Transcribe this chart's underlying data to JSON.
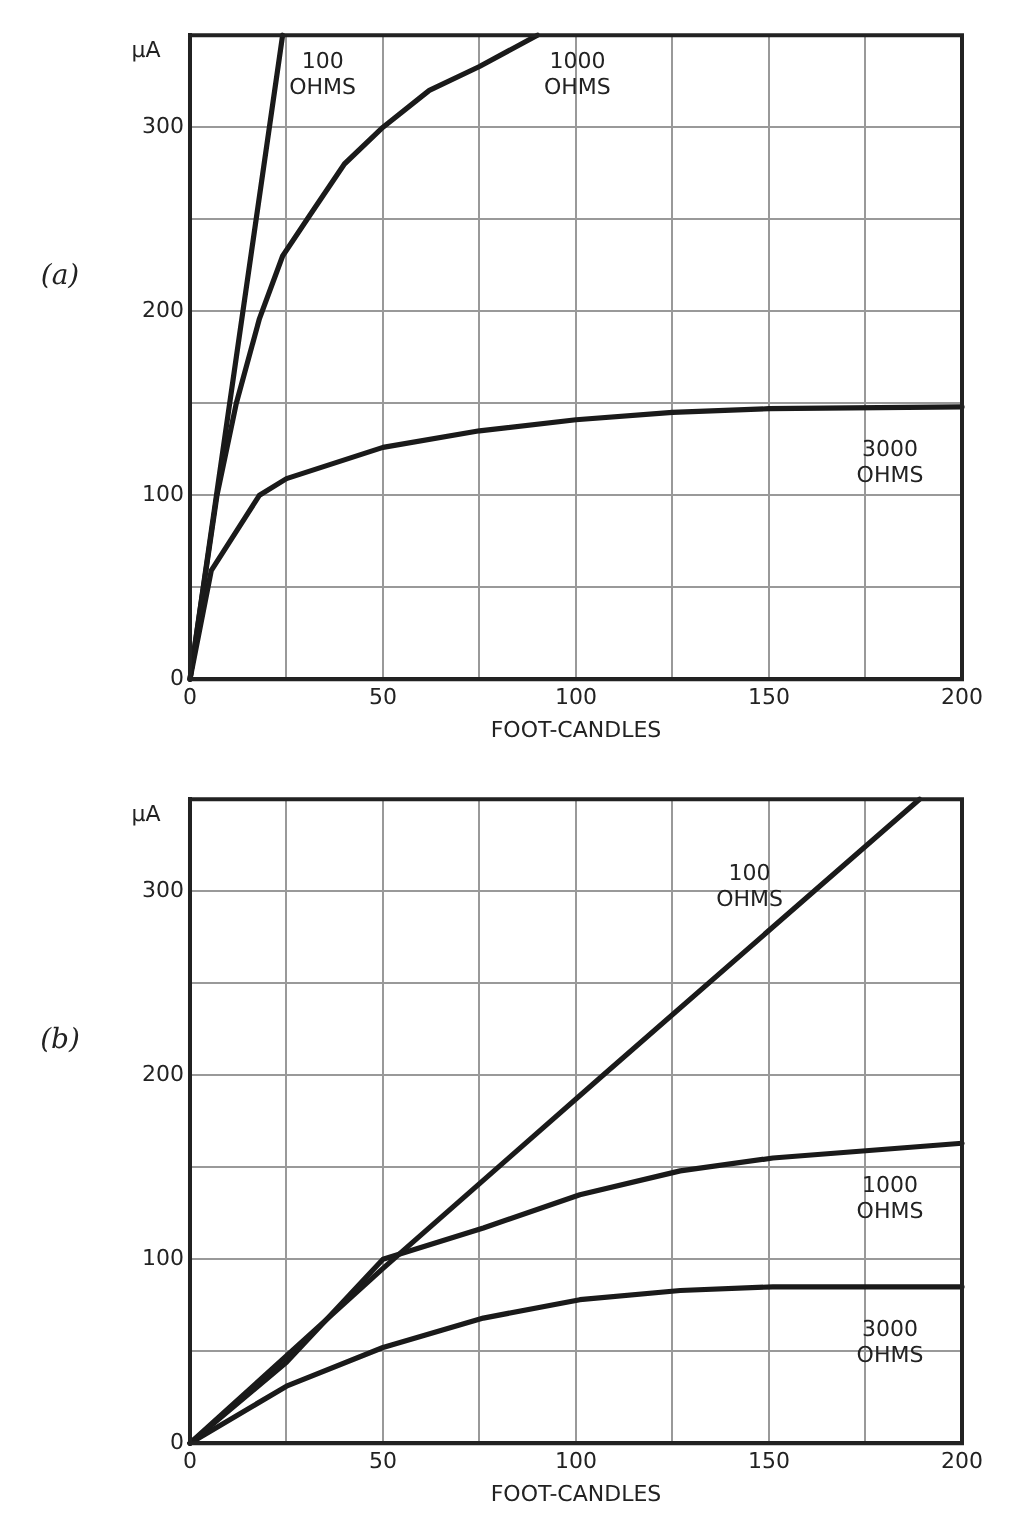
{
  "chart_data": [
    {
      "type": "line",
      "title": "(a)",
      "xlabel": "FOOT-CANDLES",
      "ylabel": "μA",
      "xlim": [
        0,
        200
      ],
      "ylim": [
        0,
        350
      ],
      "grid": true,
      "marker": "none",
      "line_style": "solid",
      "xticks": [
        0,
        {
          "value": 25,
          "label": null
        },
        50,
        {
          "value": 75,
          "label": null
        },
        100,
        {
          "value": 125,
          "label": null
        },
        150,
        {
          "value": 175,
          "label": null
        },
        200
      ],
      "yticks": [
        0,
        {
          "value": 50,
          "label": null
        },
        100,
        {
          "value": 150,
          "label": null
        },
        200,
        {
          "value": 250,
          "label": null
        },
        300,
        {
          "value": 350,
          "label": null
        }
      ],
      "series": [
        {
          "name": "100 OHMS",
          "color": "#1a1a1a",
          "x": [
            0,
            24
          ],
          "values": [
            0,
            350
          ]
        },
        {
          "name": "1000 OHMS",
          "color": "#1a1a1a",
          "x": [
            0,
            7,
            12,
            18,
            24,
            31,
            40,
            50,
            62,
            75,
            90
          ],
          "values": [
            0,
            100,
            150,
            196,
            230,
            252,
            280,
            300,
            320,
            333,
            350
          ]
        },
        {
          "name": "3000 OHMS",
          "color": "#1a1a1a",
          "x": [
            0,
            5.5,
            18,
            25,
            50,
            75,
            100,
            125,
            150,
            200
          ],
          "values": [
            0,
            59,
            100,
            109,
            126,
            135,
            141,
            145,
            147,
            148
          ]
        }
      ],
      "legend": false
    },
    {
      "type": "line",
      "title": "(b)",
      "xlabel": "FOOT-CANDLES",
      "ylabel": "μA",
      "xlim": [
        0,
        200
      ],
      "ylim": [
        0,
        350
      ],
      "grid": true,
      "marker": "none",
      "line_style": "solid",
      "xticks": [
        0,
        {
          "value": 25,
          "label": null
        },
        50,
        {
          "value": 75,
          "label": null
        },
        100,
        {
          "value": 125,
          "label": null
        },
        150,
        {
          "value": 175,
          "label": null
        },
        200
      ],
      "yticks": [
        0,
        {
          "value": 50,
          "label": null
        },
        100,
        {
          "value": 150,
          "label": null
        },
        200,
        {
          "value": 250,
          "label": null
        },
        300,
        {
          "value": 350,
          "label": null
        }
      ],
      "series": [
        {
          "name": "100 OHMS",
          "color": "#1a1a1a",
          "x": [
            0,
            50,
            107,
            189
          ],
          "values": [
            0,
            95,
            200,
            350
          ]
        },
        {
          "name": "1000 OHMS",
          "color": "#1a1a1a",
          "x": [
            0,
            25,
            50,
            76,
            101,
            127,
            151,
            200
          ],
          "values": [
            0,
            44,
            100,
            117,
            135,
            148,
            155,
            163
          ]
        },
        {
          "name": "3000 OHMS",
          "color": "#1a1a1a",
          "x": [
            0,
            25,
            50,
            76,
            101,
            127,
            151,
            200
          ],
          "values": [
            0,
            31,
            52,
            68,
            78,
            83,
            85,
            85
          ]
        }
      ],
      "legend": false
    }
  ]
}
